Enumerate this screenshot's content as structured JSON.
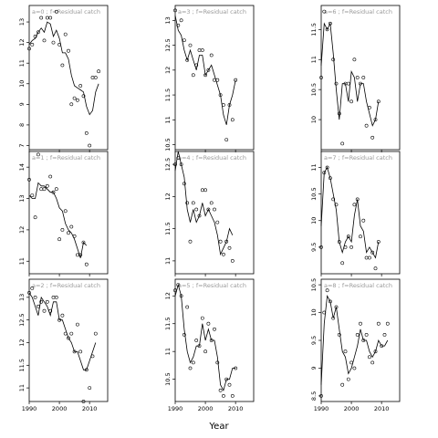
{
  "figure": {
    "xlabel": "Year"
  },
  "chart_data": [
    {
      "type": "scatter",
      "title": "a=0 ; f=Residual catch",
      "x_ticks": [
        1990,
        2000,
        2010
      ],
      "y_ticks": [
        7,
        8,
        9,
        10,
        11,
        12,
        13
      ],
      "xlim": [
        1990,
        2016
      ],
      "ylim": [
        6.8,
        13.8
      ],
      "x": [
        1990,
        1991,
        1992,
        1993,
        1994,
        1995,
        1996,
        1997,
        1998,
        1999,
        2000,
        2001,
        2002,
        2003,
        2004,
        2005,
        2006,
        2007,
        2008,
        2009,
        2010,
        2011,
        2012,
        2013,
        2014,
        2015
      ],
      "points": [
        11.7,
        11.9,
        12.3,
        12.5,
        13.2,
        12.1,
        13.2,
        13.2,
        12.0,
        13.5,
        11.9,
        10.9,
        12.4,
        11.6,
        9.0,
        9.3,
        9.2,
        9.9,
        9.4,
        7.6,
        7.0,
        10.3,
        10.3,
        10.6
      ],
      "line": [
        11.9,
        12.1,
        12.2,
        12.5,
        12.7,
        12.5,
        13.0,
        12.9,
        12.3,
        12.6,
        12.2,
        11.5,
        11.5,
        11.2,
        10.4,
        9.9,
        9.8,
        9.7,
        9.6,
        8.9,
        8.5,
        8.7,
        9.6,
        10.0
      ]
    },
    {
      "type": "scatter",
      "title": "a=3 ; f=Residual catch",
      "x_ticks": [
        1990,
        2000,
        2010
      ],
      "y_ticks": [
        10.5,
        11.0,
        11.5,
        12.0,
        12.5,
        13.0
      ],
      "xlim": [
        1990,
        2016
      ],
      "ylim": [
        10.4,
        13.3
      ],
      "x": [
        1990,
        1991,
        1992,
        1993,
        1994,
        1995,
        1996,
        1997,
        1998,
        1999,
        2000,
        2001,
        2002,
        2003,
        2004,
        2005,
        2006,
        2007,
        2008,
        2009,
        2010,
        2011,
        2012,
        2013,
        2014
      ],
      "points": [
        13.2,
        12.9,
        13.0,
        12.6,
        12.2,
        12.5,
        11.9,
        12.1,
        12.4,
        12.4,
        11.9,
        12.0,
        12.3,
        11.8,
        11.8,
        11.5,
        11.3,
        10.6,
        11.3,
        11.0,
        11.8
      ],
      "line": [
        13.1,
        12.8,
        12.7,
        12.4,
        12.2,
        12.4,
        12.2,
        12.0,
        12.3,
        12.3,
        11.9,
        12.0,
        12.1,
        11.9,
        11.7,
        11.5,
        11.1,
        10.9,
        11.3,
        11.5,
        11.8
      ]
    },
    {
      "type": "scatter",
      "title": "a=6 ; f=Residual catch",
      "x_ticks": [
        1990,
        2000,
        2010
      ],
      "y_ticks": [
        10.0,
        10.5,
        11.0,
        11.5
      ],
      "xlim": [
        1990,
        2016
      ],
      "ylim": [
        9.5,
        11.9
      ],
      "x": [
        1990,
        1991,
        1992,
        1993,
        1994,
        1995,
        1996,
        1997,
        1998,
        1999,
        2000,
        2001,
        2002,
        2003,
        2004,
        2005,
        2006,
        2007,
        2008,
        2009,
        2010,
        2011,
        2012,
        2013,
        2014
      ],
      "points": [
        10.7,
        11.8,
        11.5,
        11.6,
        11.0,
        10.6,
        10.1,
        9.6,
        10.6,
        10.6,
        10.3,
        11.0,
        10.7,
        10.6,
        10.7,
        9.9,
        10.2,
        9.7,
        10.0,
        10.3
      ],
      "line": [
        10.9,
        11.6,
        11.5,
        11.6,
        11.1,
        10.5,
        10.0,
        10.6,
        10.6,
        10.3,
        10.8,
        10.7,
        10.3,
        10.6,
        10.6,
        10.3,
        10.1,
        9.9,
        10.0,
        10.3
      ]
    },
    {
      "type": "scatter",
      "title": "a=1 ; f=Residual catch",
      "x_ticks": [
        1990,
        2000,
        2010
      ],
      "y_ticks": [
        11.0,
        12.0,
        13.0,
        14.0
      ],
      "xlim": [
        1990,
        2016
      ],
      "ylim": [
        10.6,
        14.5
      ],
      "x": [
        1990,
        1991,
        1992,
        1993,
        1994,
        1995,
        1996,
        1997,
        1998,
        1999,
        2000,
        2001,
        2002,
        2003,
        2004,
        2005,
        2006,
        2007,
        2008,
        2009,
        2010,
        2011,
        2012,
        2013,
        2014
      ],
      "points": [
        13.6,
        13.1,
        12.4,
        14.4,
        13.3,
        13.3,
        13.4,
        13.7,
        13.2,
        13.3,
        11.7,
        12.0,
        12.6,
        11.9,
        12.1,
        11.8,
        11.2,
        11.2,
        11.6,
        10.9
      ],
      "line": [
        13.1,
        13.0,
        13.0,
        13.5,
        13.4,
        13.4,
        13.3,
        13.2,
        13.2,
        13.0,
        12.7,
        12.6,
        12.2,
        12.0,
        11.9,
        11.7,
        11.4,
        11.1,
        11.6,
        11.5
      ]
    },
    {
      "type": "scatter",
      "title": "a=4 ; f=Residual catch",
      "x_ticks": [
        1990,
        2000,
        2010
      ],
      "y_ticks": [
        11.0,
        11.5,
        12.0,
        12.5
      ],
      "xlim": [
        1990,
        2016
      ],
      "ylim": [
        10.8,
        12.7
      ],
      "x": [
        1990,
        1991,
        1992,
        1993,
        1994,
        1995,
        1996,
        1997,
        1998,
        1999,
        2000,
        2001,
        2002,
        2003,
        2004,
        2005,
        2006,
        2007,
        2008,
        2009,
        2010,
        2011,
        2012,
        2013,
        2014
      ],
      "points": [
        12.5,
        12.6,
        12.5,
        12.2,
        11.9,
        11.3,
        11.9,
        11.8,
        11.7,
        12.1,
        12.1,
        11.8,
        11.9,
        11.8,
        11.6,
        11.3,
        11.1,
        11.3,
        11.2,
        11.0
      ],
      "line": [
        12.4,
        12.7,
        12.5,
        12.3,
        11.8,
        11.6,
        11.8,
        11.6,
        11.7,
        11.9,
        11.7,
        11.8,
        11.7,
        11.6,
        11.4,
        11.1,
        11.2,
        11.3,
        11.5,
        11.4
      ]
    },
    {
      "type": "scatter",
      "title": "a=7 ; f=Residual catch",
      "x_ticks": [
        1990,
        2000,
        2010
      ],
      "y_ticks": [
        9.5,
        10.0,
        10.5,
        11.0
      ],
      "xlim": [
        1990,
        2016
      ],
      "ylim": [
        9.0,
        11.3
      ],
      "x": [
        1990,
        1991,
        1992,
        1993,
        1994,
        1995,
        1996,
        1997,
        1998,
        1999,
        2000,
        2001,
        2002,
        2003,
        2004,
        2005,
        2006,
        2007,
        2008,
        2009,
        2010,
        2011,
        2012,
        2013,
        2014
      ],
      "points": [
        9.5,
        10.9,
        11.0,
        10.8,
        10.4,
        10.3,
        9.6,
        9.2,
        9.5,
        9.7,
        9.5,
        10.3,
        10.4,
        9.7,
        10.0,
        9.3,
        9.3,
        9.4,
        9.1,
        9.6
      ],
      "line": [
        9.9,
        10.9,
        11.0,
        10.8,
        10.5,
        10.2,
        9.6,
        9.4,
        9.6,
        9.7,
        9.6,
        10.1,
        10.4,
        9.9,
        9.8,
        9.4,
        9.5,
        9.4,
        9.3,
        9.6
      ]
    },
    {
      "type": "scatter",
      "title": "a=2 ; f=Residual catch",
      "x_ticks": [
        1990,
        2000,
        2010
      ],
      "y_ticks": [
        11.0,
        11.5,
        12.0,
        12.5,
        13.0
      ],
      "xlim": [
        1990,
        2016
      ],
      "ylim": [
        10.7,
        13.4
      ],
      "x": [
        1990,
        1991,
        1992,
        1993,
        1994,
        1995,
        1996,
        1997,
        1998,
        1999,
        2000,
        2001,
        2002,
        2003,
        2004,
        2005,
        2006,
        2007,
        2008,
        2009,
        2010,
        2011,
        2012,
        2013,
        2014
      ],
      "points": [
        13.1,
        13.2,
        13.0,
        12.8,
        12.9,
        12.7,
        12.9,
        12.7,
        13.0,
        13.0,
        12.5,
        12.6,
        12.2,
        12.1,
        12.2,
        11.8,
        12.4,
        11.8,
        10.7,
        11.4,
        11.0,
        11.7,
        12.2
      ],
      "line": [
        13.1,
        13.0,
        12.8,
        12.6,
        13.0,
        12.9,
        12.8,
        12.6,
        12.9,
        12.9,
        12.5,
        12.5,
        12.3,
        12.1,
        12.0,
        11.8,
        11.8,
        11.6,
        11.4,
        11.4,
        11.6,
        11.8,
        12.0
      ]
    },
    {
      "type": "scatter",
      "title": "a=5 ; f=Residual catch",
      "x_ticks": [
        1990,
        2000,
        2010
      ],
      "y_ticks": [
        10.5,
        11.0,
        11.5,
        12.0
      ],
      "xlim": [
        1990,
        2016
      ],
      "ylim": [
        10.1,
        12.3
      ],
      "x": [
        1990,
        1991,
        1992,
        1993,
        1994,
        1995,
        1996,
        1997,
        1998,
        1999,
        2000,
        2001,
        2002,
        2003,
        2004,
        2005,
        2006,
        2007,
        2008,
        2009,
        2010,
        2011,
        2012,
        2013,
        2014
      ],
      "points": [
        12.1,
        12.2,
        12.0,
        11.3,
        11.8,
        10.7,
        10.8,
        11.2,
        11.1,
        11.6,
        11.0,
        11.5,
        11.2,
        11.4,
        10.8,
        10.3,
        10.2,
        10.5,
        10.4,
        10.2,
        10.7
      ],
      "line": [
        12.0,
        12.2,
        12.0,
        11.4,
        11.0,
        10.8,
        10.9,
        11.1,
        11.1,
        11.5,
        11.2,
        11.4,
        11.2,
        11.2,
        10.9,
        10.4,
        10.3,
        10.5,
        10.5,
        10.7,
        10.7
      ]
    },
    {
      "type": "scatter",
      "title": "a=8 ; f=Residual catch",
      "x_ticks": [
        1990,
        2000,
        2010
      ],
      "y_ticks": [
        8.5,
        9.0,
        9.5,
        10.0,
        10.5
      ],
      "xlim": [
        1990,
        2016
      ],
      "ylim": [
        8.4,
        10.6
      ],
      "x": [
        1990,
        1991,
        1992,
        1993,
        1994,
        1995,
        1996,
        1997,
        1998,
        1999,
        2000,
        2001,
        2002,
        2003,
        2004,
        2005,
        2006,
        2007,
        2008,
        2009,
        2010,
        2011,
        2012,
        2013,
        2014
      ],
      "points": [
        8.5,
        10.0,
        10.4,
        10.2,
        9.9,
        10.1,
        9.6,
        8.7,
        9.3,
        8.8,
        9.1,
        9.0,
        9.6,
        9.8,
        9.5,
        9.6,
        9.2,
        9.1,
        9.3,
        9.8,
        9.4,
        9.6,
        9.8
      ],
      "line": [
        8.7,
        9.8,
        10.3,
        10.2,
        9.9,
        10.1,
        9.7,
        9.3,
        9.2,
        8.9,
        9.0,
        9.2,
        9.4,
        9.7,
        9.5,
        9.5,
        9.3,
        9.2,
        9.3,
        9.5,
        9.4,
        9.4,
        9.5
      ]
    }
  ]
}
